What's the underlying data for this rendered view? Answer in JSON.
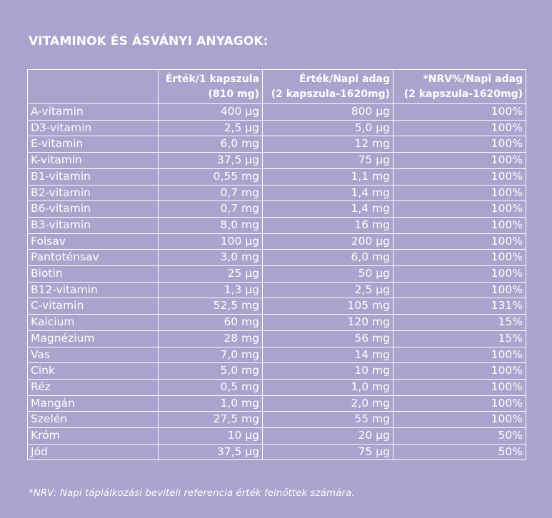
{
  "title": "VITAMINOK ÉS ÁSVÁNYI ANYAGOK:",
  "table": {
    "headers": [
      {
        "line1": "",
        "line2": ""
      },
      {
        "line1": "Érték/1 kapszula",
        "line2": "(810 mg)"
      },
      {
        "line1": "Érték/Napi adag",
        "line2": "(2 kapszula-1620mg)"
      },
      {
        "line1": "*NRV%/Napi adag",
        "line2": "(2 kapszula-1620mg)"
      }
    ],
    "rows": [
      [
        "A-vitamin",
        "400 µg",
        "800 µg",
        "100%"
      ],
      [
        "D3-vitamin",
        "2,5 µg",
        "5,0 µg",
        "100%"
      ],
      [
        "E-vitamin",
        "6,0 mg",
        "12 mg",
        "100%"
      ],
      [
        "K-vitamin",
        "37,5 µg",
        "75 µg",
        "100%"
      ],
      [
        "B1-vitamin",
        "0,55 mg",
        "1,1 mg",
        "100%"
      ],
      [
        "B2-vitamin",
        "0,7 mg",
        "1,4 mg",
        "100%"
      ],
      [
        "B6-vitamin",
        "0,7 mg",
        "1,4 mg",
        "100%"
      ],
      [
        "B3-vitamin",
        "8,0 mg",
        "16 mg",
        "100%"
      ],
      [
        "Folsav",
        "100 µg",
        "200 µg",
        "100%"
      ],
      [
        "Pantoténsav",
        "3,0 mg",
        "6,0 mg",
        "100%"
      ],
      [
        "Biotin",
        "25 µg",
        "50 µg",
        "100%"
      ],
      [
        "B12-vitamin",
        "1,3 µg",
        "2,5 µg",
        "100%"
      ],
      [
        "C-vitamin",
        "52,5 mg",
        "105 mg",
        "131%"
      ],
      [
        "Kalcium",
        "60 mg",
        "120 mg",
        "15%"
      ],
      [
        "Magnézium",
        "28 mg",
        "56 mg",
        "15%"
      ],
      [
        "Vas",
        "7,0 mg",
        "14 mg",
        "100%"
      ],
      [
        "Cink",
        "5,0 mg",
        "10 mg",
        "100%"
      ],
      [
        "Réz",
        "0,5 mg",
        "1,0 mg",
        "100%"
      ],
      [
        "Mangán",
        "1,0 mg",
        "2,0 mg",
        "100%"
      ],
      [
        "Szelén",
        "27,5 mg",
        "55 mg",
        "100%"
      ],
      [
        "Króm",
        "10 µg",
        "20 µg",
        "50%"
      ],
      [
        "Jód",
        "37,5 µg",
        "75 µg",
        "50%"
      ]
    ]
  },
  "footnote": "*NRV: Napi táplálkozási beviteli referencia érték felnőttek számára.",
  "colors": {
    "background": "#a9a4cd",
    "text": "#ffffff",
    "border": "#ffffff"
  }
}
